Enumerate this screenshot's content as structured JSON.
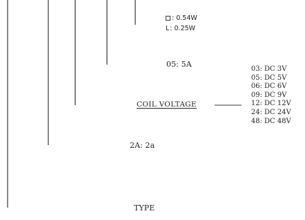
{
  "diagram": {
    "power": {
      "items": [
        {
          "symbol": "square-icon",
          "text": ": 0.54W"
        },
        {
          "prefix": "L",
          "text": ": 0.25W"
        }
      ]
    },
    "contact_current": "05: 5A",
    "coil_voltage": {
      "label": "COIL VOLTAGE",
      "options": [
        {
          "code": "03:",
          "value": "DC  3V"
        },
        {
          "code": "05:",
          "value": "DC  5V"
        },
        {
          "code": "06:",
          "value": "DC  6V"
        },
        {
          "code": "09:",
          "value": "DC  9V"
        },
        {
          "code": "12:",
          "value": "DC  12V"
        },
        {
          "code": "24:",
          "value": "DC  24V"
        },
        {
          "code": "48:",
          "value": "DC  48V"
        }
      ]
    },
    "contact_form": "2A: 2a",
    "type": "TYPE"
  },
  "colors": {
    "ink": "#1f1f1f",
    "leader_orange": "#c07a42"
  }
}
